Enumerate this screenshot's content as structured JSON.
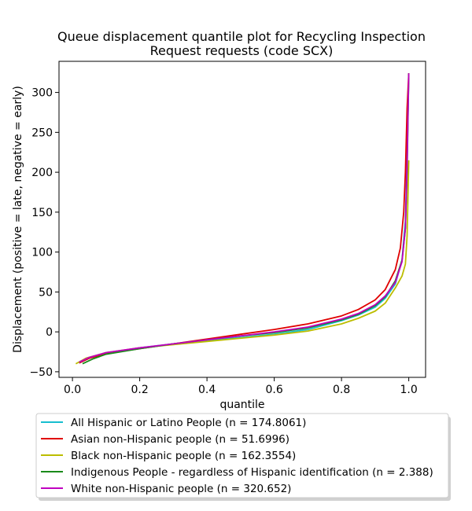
{
  "chart_data": {
    "type": "line",
    "title_lines": [
      "Queue displacement quantile plot for Recycling Inspection",
      "Request  requests (code SCX)"
    ],
    "xlabel": "quantile",
    "ylabel": "Displacement (positive = late, negative = early)",
    "xlim": [
      -0.04,
      1.05
    ],
    "ylim": [
      -57,
      339
    ],
    "xticks": [
      0.0,
      0.2,
      0.4,
      0.6,
      0.8,
      1.0
    ],
    "xtick_labels": [
      "0.0",
      "0.2",
      "0.4",
      "0.6",
      "0.8",
      "1.0"
    ],
    "yticks": [
      -50,
      0,
      50,
      100,
      150,
      200,
      250,
      300
    ],
    "ytick_labels": [
      "−50",
      "0",
      "50",
      "100",
      "150",
      "200",
      "250",
      "300"
    ],
    "grid": false,
    "legend_position": "below plot",
    "series": [
      {
        "name": "All Hispanic or Latino People (n = 174.8061)",
        "color": "#17becf",
        "points": [
          [
            0.02,
            -39
          ],
          [
            0.05,
            -33
          ],
          [
            0.1,
            -27
          ],
          [
            0.2,
            -20
          ],
          [
            0.3,
            -15
          ],
          [
            0.4,
            -11
          ],
          [
            0.5,
            -7
          ],
          [
            0.6,
            -3
          ],
          [
            0.7,
            3
          ],
          [
            0.8,
            14
          ],
          [
            0.85,
            21
          ],
          [
            0.9,
            31
          ],
          [
            0.93,
            42
          ],
          [
            0.96,
            60
          ],
          [
            0.98,
            90
          ],
          [
            0.99,
            140
          ],
          [
            0.995,
            220
          ],
          [
            1.0,
            324
          ]
        ]
      },
      {
        "name": "Asian non-Hispanic people (n = 51.6996)",
        "color": "#e00000",
        "points": [
          [
            0.02,
            -39
          ],
          [
            0.05,
            -33
          ],
          [
            0.1,
            -27
          ],
          [
            0.2,
            -21
          ],
          [
            0.3,
            -15
          ],
          [
            0.4,
            -9
          ],
          [
            0.5,
            -3
          ],
          [
            0.6,
            3
          ],
          [
            0.7,
            10
          ],
          [
            0.8,
            20
          ],
          [
            0.85,
            28
          ],
          [
            0.9,
            40
          ],
          [
            0.93,
            53
          ],
          [
            0.96,
            78
          ],
          [
            0.975,
            105
          ],
          [
            0.985,
            150
          ],
          [
            0.99,
            200
          ],
          [
            0.995,
            280
          ],
          [
            1.0,
            324
          ]
        ]
      },
      {
        "name": "Black non-Hispanic people (n = 162.3554)",
        "color": "#bcbd00",
        "points": [
          [
            0.01,
            -40
          ],
          [
            0.04,
            -33
          ],
          [
            0.1,
            -26
          ],
          [
            0.2,
            -20
          ],
          [
            0.3,
            -16
          ],
          [
            0.4,
            -12
          ],
          [
            0.5,
            -8
          ],
          [
            0.6,
            -4
          ],
          [
            0.7,
            1
          ],
          [
            0.8,
            10
          ],
          [
            0.85,
            17
          ],
          [
            0.9,
            26
          ],
          [
            0.93,
            36
          ],
          [
            0.96,
            55
          ],
          [
            0.98,
            70
          ],
          [
            0.99,
            85
          ],
          [
            0.995,
            120
          ],
          [
            1.0,
            215
          ]
        ]
      },
      {
        "name": "Indigenous People - regardless of Hispanic identification (n = 2.388)",
        "color": "#1a8a1a",
        "points": [
          [
            0.03,
            -40
          ],
          [
            0.06,
            -34
          ],
          [
            0.1,
            -28
          ],
          [
            0.2,
            -21
          ],
          [
            0.3,
            -15
          ],
          [
            0.4,
            -10
          ],
          [
            0.5,
            -5
          ],
          [
            0.6,
            -1
          ],
          [
            0.7,
            5
          ],
          [
            0.8,
            15
          ],
          [
            0.85,
            22
          ],
          [
            0.9,
            33
          ],
          [
            0.93,
            44
          ],
          [
            0.96,
            64
          ],
          [
            0.98,
            90
          ],
          [
            0.99,
            130
          ],
          [
            0.995,
            200
          ],
          [
            1.0,
            324
          ]
        ]
      },
      {
        "name": "White non-Hispanic people (n = 320.652)",
        "color": "#c000c0",
        "points": [
          [
            0.02,
            -38
          ],
          [
            0.05,
            -32
          ],
          [
            0.1,
            -26
          ],
          [
            0.2,
            -20
          ],
          [
            0.3,
            -15
          ],
          [
            0.4,
            -10
          ],
          [
            0.5,
            -5
          ],
          [
            0.6,
            0
          ],
          [
            0.7,
            6
          ],
          [
            0.8,
            16
          ],
          [
            0.85,
            23
          ],
          [
            0.9,
            34
          ],
          [
            0.93,
            45
          ],
          [
            0.96,
            62
          ],
          [
            0.98,
            88
          ],
          [
            0.99,
            130
          ],
          [
            0.995,
            210
          ],
          [
            1.0,
            324
          ]
        ]
      }
    ]
  }
}
